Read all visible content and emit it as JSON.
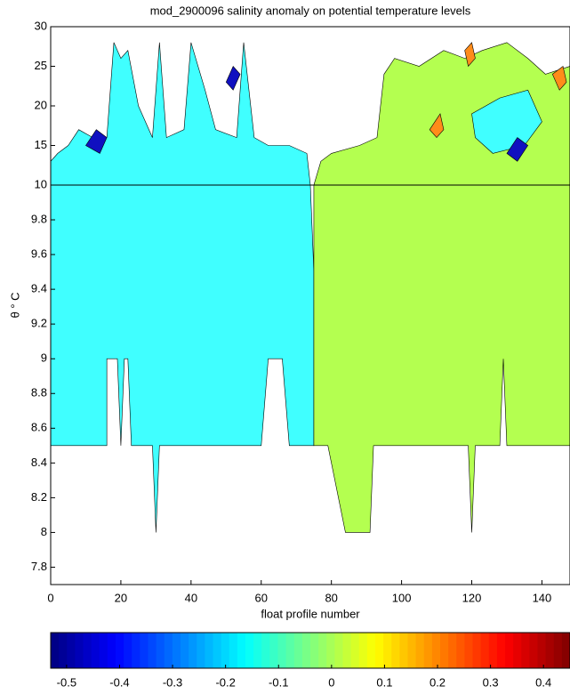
{
  "chart_data": {
    "type": "contour",
    "title": "mod_2900096 salinity anomaly on potential temperature levels",
    "xlabel": "float profile number",
    "ylabel": "θ ° C",
    "xlim": [
      0,
      148
    ],
    "xticks": [
      0,
      20,
      40,
      60,
      80,
      100,
      120,
      140
    ],
    "ylim": [
      7.7,
      30
    ],
    "ybreak": 10,
    "yticks": [
      7.8,
      8,
      8.2,
      8.4,
      8.6,
      8.8,
      9,
      9.2,
      9.4,
      9.6,
      9.8,
      10,
      15,
      20,
      25,
      30
    ],
    "regions": [
      {
        "level": -0.15,
        "color": "#40ffff",
        "points": [
          [
            0,
            10
          ],
          [
            74,
            10
          ],
          [
            75,
            9.5
          ],
          [
            75,
            8.5
          ],
          [
            68,
            8.5
          ],
          [
            66,
            9
          ],
          [
            62,
            9
          ],
          [
            60,
            8.5
          ],
          [
            31,
            8.5
          ],
          [
            30,
            8
          ],
          [
            29,
            8.5
          ],
          [
            23,
            8.5
          ],
          [
            22,
            9
          ],
          [
            21,
            9
          ],
          [
            20,
            8.5
          ],
          [
            19,
            9
          ],
          [
            16,
            9
          ],
          [
            16,
            8.5
          ],
          [
            0,
            8.5
          ]
        ]
      },
      {
        "level": -0.15,
        "color": "#40ffff",
        "points": [
          [
            0,
            10
          ],
          [
            74,
            10
          ],
          [
            73,
            14
          ],
          [
            68,
            15
          ],
          [
            62,
            15
          ],
          [
            58,
            16
          ],
          [
            55,
            28
          ],
          [
            53,
            16
          ],
          [
            47,
            17
          ],
          [
            44,
            22
          ],
          [
            40,
            28
          ],
          [
            38,
            17
          ],
          [
            33,
            16
          ],
          [
            31,
            28
          ],
          [
            29,
            16
          ],
          [
            25,
            20
          ],
          [
            22,
            27
          ],
          [
            20,
            26
          ],
          [
            18,
            28
          ],
          [
            16,
            16
          ],
          [
            12,
            16
          ],
          [
            8,
            17
          ],
          [
            5,
            15
          ],
          [
            2,
            14
          ],
          [
            0,
            13
          ]
        ]
      },
      {
        "level": 0,
        "color": "#b4ff50",
        "points": [
          [
            75,
            10
          ],
          [
            75,
            8.5
          ],
          [
            79,
            8.5
          ],
          [
            84,
            8
          ],
          [
            91,
            8
          ],
          [
            92,
            8.5
          ],
          [
            119,
            8.5
          ],
          [
            120,
            8
          ],
          [
            121,
            8.5
          ],
          [
            128,
            8.5
          ],
          [
            129,
            9
          ],
          [
            130,
            8.5
          ],
          [
            148,
            8.5
          ],
          [
            148,
            10
          ]
        ]
      },
      {
        "level": 0,
        "color": "#b4ff50",
        "points": [
          [
            75,
            10
          ],
          [
            148,
            10
          ],
          [
            148,
            25
          ],
          [
            141,
            24
          ],
          [
            136,
            26
          ],
          [
            130,
            28
          ],
          [
            123,
            27
          ],
          [
            118,
            26
          ],
          [
            112,
            27
          ],
          [
            105,
            25
          ],
          [
            98,
            26
          ],
          [
            95,
            24
          ],
          [
            93,
            16
          ],
          [
            88,
            15
          ],
          [
            80,
            14
          ],
          [
            77,
            13
          ]
        ]
      },
      {
        "level": -0.15,
        "color": "#40ffff",
        "points": [
          [
            120,
            19
          ],
          [
            128,
            21
          ],
          [
            136,
            22
          ],
          [
            140,
            18
          ],
          [
            135,
            15
          ],
          [
            126,
            14
          ],
          [
            121,
            16
          ]
        ]
      },
      {
        "level": -0.45,
        "color": "#1010c0",
        "points": [
          [
            10,
            15
          ],
          [
            13,
            17
          ],
          [
            16,
            16
          ],
          [
            14,
            14
          ]
        ]
      },
      {
        "level": -0.45,
        "color": "#1010c0",
        "points": [
          [
            50,
            23
          ],
          [
            52,
            25
          ],
          [
            54,
            24
          ],
          [
            52,
            22
          ]
        ]
      },
      {
        "level": -0.45,
        "color": "#1010c0",
        "points": [
          [
            130,
            14
          ],
          [
            133,
            16
          ],
          [
            136,
            15
          ],
          [
            133,
            13
          ]
        ]
      },
      {
        "level": 0.25,
        "color": "#ff8c1a",
        "points": [
          [
            108,
            17
          ],
          [
            111,
            19
          ],
          [
            112,
            17
          ],
          [
            110,
            16
          ]
        ]
      },
      {
        "level": 0.25,
        "color": "#ff8c1a",
        "points": [
          [
            118,
            27
          ],
          [
            120,
            28
          ],
          [
            121,
            26
          ],
          [
            119,
            25
          ]
        ]
      },
      {
        "level": 0.25,
        "color": "#ff8c1a",
        "points": [
          [
            143,
            24
          ],
          [
            146,
            25
          ],
          [
            147,
            23
          ],
          [
            145,
            22
          ]
        ]
      }
    ],
    "colorbar": {
      "clim": [
        -0.53,
        0.45
      ],
      "colormap": "jet",
      "ticks": [
        -0.5,
        -0.4,
        -0.3,
        -0.2,
        -0.1,
        0,
        0.1,
        0.2,
        0.3,
        0.4
      ]
    }
  }
}
